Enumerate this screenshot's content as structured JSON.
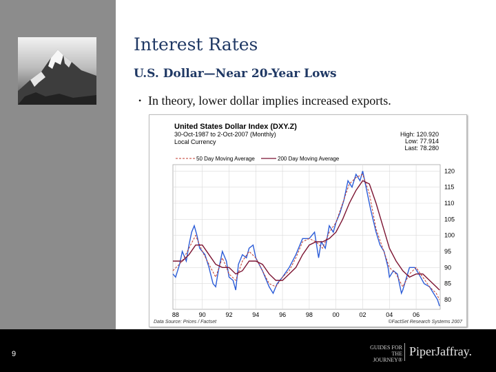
{
  "slide": {
    "title": "Interest Rates",
    "subtitle": "U.S. Dollar—Near 20-Year Lows",
    "bullet": "In theory, lower dollar implies increased exports.",
    "page_number": "9"
  },
  "footer": {
    "guides_line1": "GUIDES FOR",
    "guides_line2": "THE JOURNEY®",
    "brand": "PiperJaffray."
  },
  "colors": {
    "title": "#1f3864",
    "price": "#2a5bd7",
    "ma50": "#c0392b",
    "ma200": "#7b1230",
    "footer": "#000000"
  },
  "chart_data": {
    "type": "line",
    "title": "United States Dollar Index (DXY.Z)",
    "subtitle": "30-Oct-1987 to 2-Oct-2007 (Monthly)",
    "currency_note": "Local Currency",
    "stats": {
      "high": "High: 120.920",
      "low": "Low: 77.914",
      "last": "Last: 78.280"
    },
    "legend": [
      "50 Day Moving Average",
      "200 Day Moving Average"
    ],
    "source_left": "Data Source: Prices / Factset",
    "source_right": "©FactSet Research Systems 2007",
    "x_ticks": [
      "88",
      "90",
      "92",
      "94",
      "96",
      "98",
      "00",
      "02",
      "04",
      "06"
    ],
    "y_ticks": [
      80,
      85,
      90,
      95,
      100,
      105,
      110,
      115,
      120
    ],
    "xlim": [
      1987.8,
      2007.8
    ],
    "ylim": [
      77,
      122
    ],
    "grid": true,
    "price": {
      "x": [
        1987.8,
        1988.0,
        1988.3,
        1988.5,
        1988.8,
        1989.0,
        1989.2,
        1989.4,
        1989.6,
        1989.8,
        1990.0,
        1990.2,
        1990.5,
        1990.8,
        1991.0,
        1991.2,
        1991.5,
        1991.8,
        1992.0,
        1992.3,
        1992.5,
        1992.7,
        1993.0,
        1993.3,
        1993.5,
        1993.8,
        1994.0,
        1994.5,
        1995.0,
        1995.3,
        1995.6,
        1996.0,
        1996.5,
        1997.0,
        1997.5,
        1998.0,
        1998.4,
        1998.7,
        1998.9,
        1999.2,
        1999.5,
        1999.8,
        2000.0,
        2000.3,
        2000.6,
        2000.9,
        2001.2,
        2001.5,
        2001.8,
        2002.0,
        2002.3,
        2002.6,
        2003.0,
        2003.3,
        2003.6,
        2003.9,
        2004.0,
        2004.3,
        2004.6,
        2004.9,
        2005.0,
        2005.5,
        2005.9,
        2006.2,
        2006.6,
        2007.0,
        2007.3,
        2007.6,
        2007.75
      ],
      "y": [
        88,
        87,
        91,
        95,
        92,
        97,
        101,
        103,
        100,
        96,
        95,
        94,
        90,
        85,
        84,
        89,
        95,
        92,
        87,
        86,
        83,
        91,
        94,
        93,
        96,
        97,
        93,
        89,
        84,
        82,
        85,
        87,
        90,
        94,
        99,
        99,
        101,
        93,
        98,
        96,
        103,
        101,
        104,
        107,
        111,
        117,
        115,
        119,
        117,
        120,
        114,
        108,
        101,
        97,
        95,
        90,
        87,
        89,
        88,
        82,
        83,
        90,
        90,
        88,
        85,
        84,
        82,
        80,
        78
      ]
    },
    "ma50": {
      "x": [
        1987.8,
        1988.5,
        1989.0,
        1989.5,
        1990.0,
        1990.5,
        1991.0,
        1991.5,
        1992.0,
        1992.5,
        1993.0,
        1993.5,
        1994.0,
        1994.5,
        1995.0,
        1995.5,
        1996.0,
        1996.5,
        1997.0,
        1997.5,
        1998.0,
        1998.5,
        1999.0,
        1999.5,
        2000.0,
        2000.5,
        2001.0,
        2001.5,
        2002.0,
        2002.5,
        2003.0,
        2003.5,
        2004.0,
        2004.5,
        2005.0,
        2005.5,
        2006.0,
        2006.5,
        2007.0,
        2007.5,
        2007.75
      ],
      "y": [
        89,
        92,
        96,
        100,
        95,
        91,
        87,
        93,
        88,
        86,
        92,
        95,
        93,
        89,
        85,
        84,
        87,
        89,
        93,
        98,
        99,
        98,
        96,
        101,
        104,
        110,
        116,
        118,
        119,
        113,
        102,
        96,
        90,
        88,
        84,
        88,
        90,
        87,
        84,
        82,
        80
      ]
    },
    "ma200": {
      "x": [
        1987.8,
        1988.5,
        1989.0,
        1989.5,
        1990.0,
        1990.5,
        1991.0,
        1991.5,
        1992.0,
        1992.5,
        1993.0,
        1993.5,
        1994.0,
        1994.5,
        1995.0,
        1995.5,
        1996.0,
        1996.5,
        1997.0,
        1997.5,
        1998.0,
        1998.5,
        1999.0,
        1999.5,
        2000.0,
        2000.5,
        2001.0,
        2001.5,
        2002.0,
        2002.5,
        2003.0,
        2003.5,
        2004.0,
        2004.5,
        2005.0,
        2005.5,
        2006.0,
        2006.5,
        2007.0,
        2007.5,
        2007.75
      ],
      "y": [
        92,
        92,
        94,
        97,
        97,
        94,
        91,
        90,
        90,
        88,
        89,
        92,
        92,
        91,
        88,
        86,
        86,
        88,
        90,
        94,
        97,
        98,
        98,
        99,
        101,
        105,
        110,
        114,
        117,
        116,
        110,
        103,
        96,
        92,
        89,
        87,
        88,
        88,
        86,
        84,
        83
      ]
    }
  }
}
